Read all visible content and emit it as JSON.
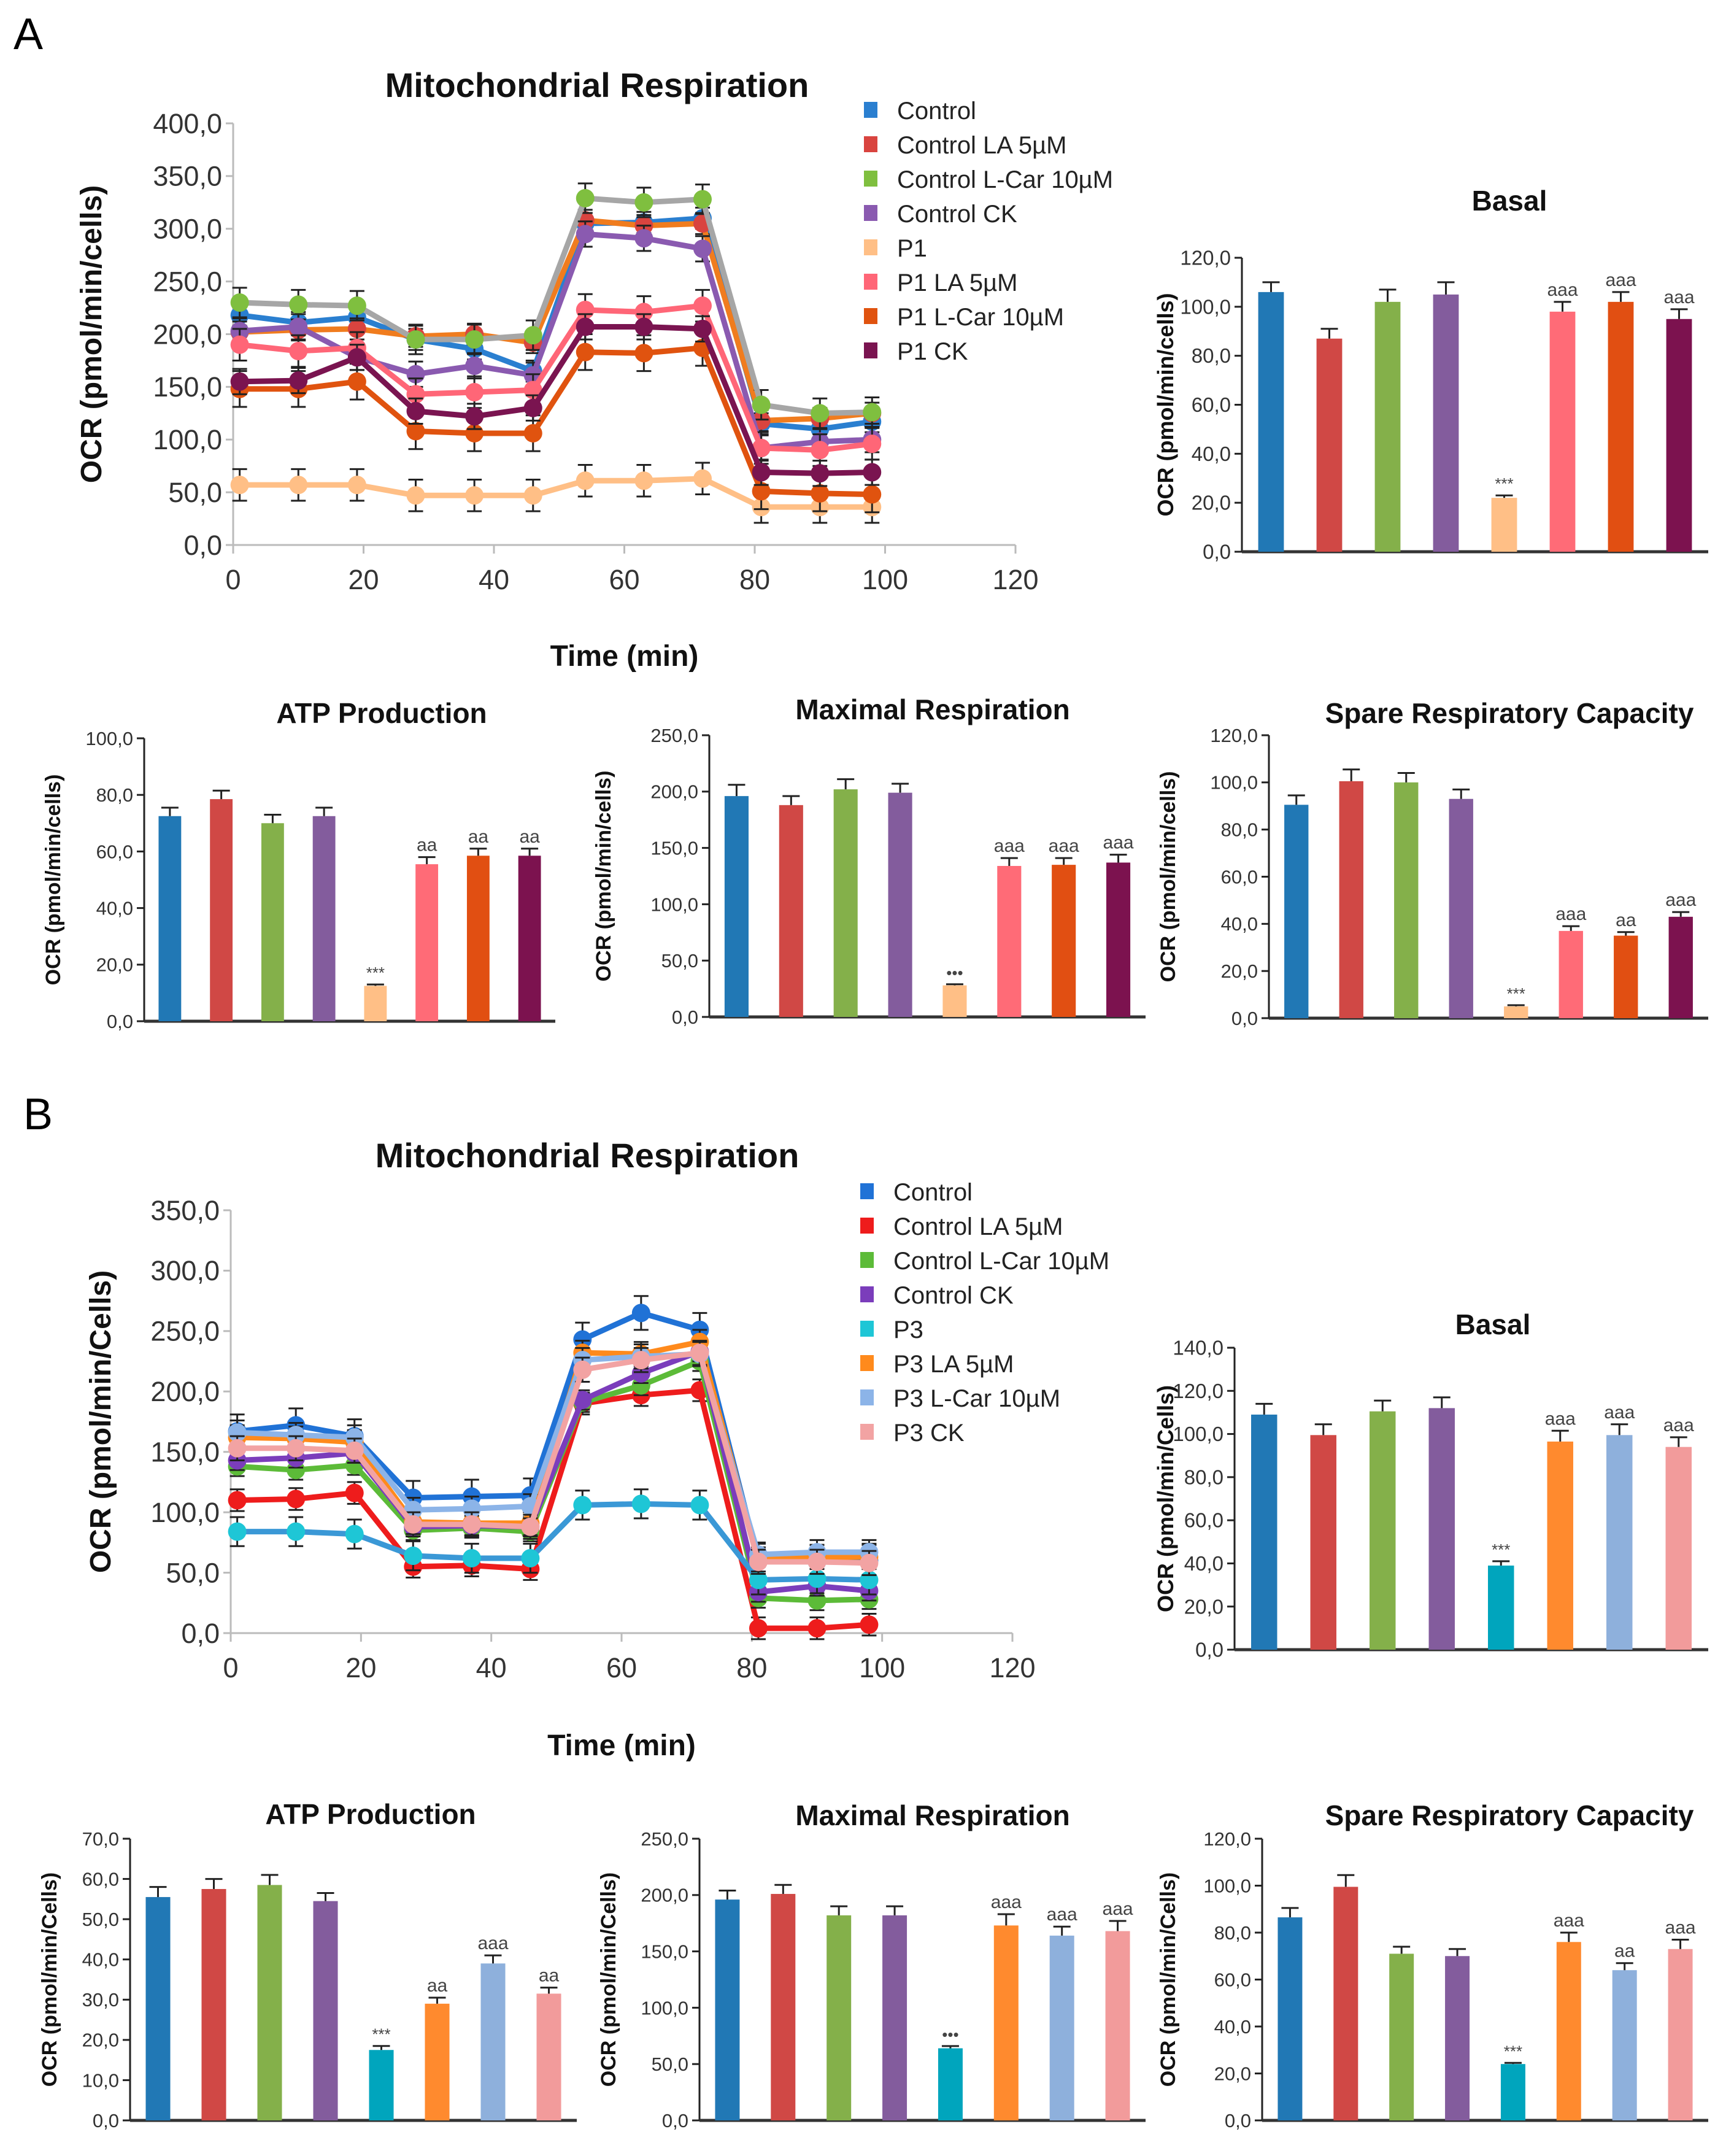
{
  "panels": [
    {
      "label": "A"
    },
    {
      "label": "B"
    }
  ],
  "chart_data": [
    {
      "id": "A-line",
      "type": "line",
      "title": "Mitochondrial Respiration",
      "xlabel": "Time (min)",
      "ylabel": "OCR (pmol/min/cells)",
      "xlim": [
        0,
        120
      ],
      "xticks": [
        "0",
        "20",
        "40",
        "60",
        "80",
        "100",
        "120"
      ],
      "ylim": [
        0,
        400
      ],
      "yticks": [
        "0,0",
        "50,0",
        "100,0",
        "150,0",
        "200,0",
        "250,0",
        "300,0",
        "350,0",
        "400,0"
      ],
      "legend": "top-right",
      "x": [
        1,
        10,
        19,
        28,
        37,
        46,
        54,
        63,
        72,
        81,
        90,
        98
      ],
      "series": [
        {
          "name": "Control",
          "color": "#2a7fd0",
          "line_color": "#2a7fd0",
          "error": 10,
          "values": [
            218,
            211,
            216,
            195,
            186,
            165,
            305,
            306,
            310,
            115,
            110,
            117
          ]
        },
        {
          "name": "Control LA 5µM",
          "color": "#d9443f",
          "line_color": "#f07c1e",
          "error": 10,
          "values": [
            202,
            204,
            205,
            198,
            200,
            192,
            308,
            303,
            305,
            118,
            120,
            125
          ]
        },
        {
          "name": "Control L-Car 10µM",
          "color": "#7fbf3f",
          "line_color": "#a6a6a6",
          "error": 14,
          "values": [
            230,
            228,
            227,
            195,
            195,
            199,
            329,
            325,
            328,
            133,
            125,
            126
          ]
        },
        {
          "name": "Control CK",
          "color": "#8a5ab0",
          "line_color": "#8a5ab0",
          "error": 12,
          "values": [
            203,
            207,
            178,
            162,
            170,
            161,
            295,
            291,
            281,
            92,
            98,
            100
          ]
        },
        {
          "name": "P1",
          "color": "#ffbf86",
          "line_color": "#ffbf86",
          "error": 15,
          "values": [
            57,
            57,
            57,
            47,
            47,
            47,
            61,
            61,
            63,
            36,
            36,
            36
          ]
        },
        {
          "name": "P1 LA 5µM",
          "color": "#ff6677",
          "line_color": "#ff6677",
          "error": 15,
          "values": [
            190,
            184,
            187,
            143,
            145,
            147,
            223,
            221,
            227,
            92,
            90,
            96
          ]
        },
        {
          "name": "P1  L-Car 10µM",
          "color": "#e0530f",
          "line_color": "#e0530f",
          "error": 17,
          "values": [
            148,
            148,
            155,
            108,
            106,
            106,
            183,
            182,
            187,
            51,
            49,
            48
          ]
        },
        {
          "name": "P1 CK",
          "color": "#7a1450",
          "line_color": "#7a1450",
          "error": 12,
          "values": [
            155,
            156,
            178,
            127,
            122,
            130,
            207,
            207,
            205,
            69,
            68,
            69
          ]
        }
      ]
    },
    {
      "id": "A-basal",
      "type": "bar",
      "title": "Basal",
      "ylabel": "OCR (pmol/min/cells)",
      "ylim": [
        0,
        120
      ],
      "yticks": [
        "0,0",
        "20,0",
        "40,0",
        "60,0",
        "80,0",
        "100,0",
        "120,0"
      ],
      "values": [
        106,
        87,
        102,
        105,
        22,
        98,
        102,
        95
      ],
      "errors": [
        4,
        4,
        5,
        5,
        1,
        4,
        4,
        4
      ],
      "annotations": [
        "",
        "",
        "",
        "",
        "***",
        "aaa",
        "aaa",
        "aaa"
      ],
      "colors": [
        "#2178b5",
        "#d04845",
        "#84b04a",
        "#835c9d",
        "#ffbf86",
        "#ff6b77",
        "#e14f12",
        "#7c124f"
      ]
    },
    {
      "id": "A-atp",
      "type": "bar",
      "title": "ATP Production",
      "ylabel": "OCR (pmol/min/cells)",
      "ylim": [
        0,
        100
      ],
      "yticks": [
        "0,0",
        "20,0",
        "40,0",
        "60,0",
        "80,0",
        "100,0"
      ],
      "values": [
        72.5,
        78.5,
        70,
        72.5,
        12.5,
        55.5,
        58.5,
        58.5
      ],
      "errors": [
        3,
        3,
        3,
        3,
        0.5,
        2.5,
        2.5,
        2.5
      ],
      "annotations": [
        "",
        "",
        "",
        "",
        "***",
        "aa",
        "aa",
        "aa"
      ],
      "colors": [
        "#2178b5",
        "#d04845",
        "#84b04a",
        "#835c9d",
        "#ffbf86",
        "#ff6b77",
        "#e14f12",
        "#7c124f"
      ]
    },
    {
      "id": "A-max",
      "type": "bar",
      "title": "Maximal Respiration",
      "ylabel": "OCR (pmol/min/cells)",
      "ylim": [
        0,
        250
      ],
      "yticks": [
        "0,0",
        "50,0",
        "100,0",
        "150,0",
        "200,0",
        "250,0"
      ],
      "values": [
        196,
        188,
        202,
        199,
        28,
        134,
        135,
        137
      ],
      "errors": [
        10,
        8,
        9,
        8,
        1,
        7,
        6,
        7
      ],
      "annotations": [
        "",
        "",
        "",
        "",
        "•••",
        "aaa",
        "aaa",
        "aaa"
      ],
      "colors": [
        "#2178b5",
        "#d04845",
        "#84b04a",
        "#835c9d",
        "#ffbf86",
        "#ff6b77",
        "#e14f12",
        "#7c124f"
      ]
    },
    {
      "id": "A-spare",
      "type": "bar",
      "title": "Spare Respiratory Capacity",
      "ylabel": "OCR (pmol/min/cells)",
      "ylim": [
        0,
        120
      ],
      "yticks": [
        "0,0",
        "20,0",
        "40,0",
        "60,0",
        "80,0",
        "100,0",
        "120,0"
      ],
      "values": [
        90.5,
        100.5,
        100,
        93,
        5,
        37,
        35,
        43
      ],
      "errors": [
        4,
        5,
        4,
        4,
        0.5,
        2,
        1.5,
        2
      ],
      "annotations": [
        "",
        "",
        "",
        "",
        "***",
        "aaa",
        "aa",
        "aaa"
      ],
      "colors": [
        "#2178b5",
        "#d04845",
        "#84b04a",
        "#835c9d",
        "#ffbf86",
        "#ff6b77",
        "#e14f12",
        "#7c124f"
      ]
    },
    {
      "id": "B-line",
      "type": "line",
      "title": "Mitochondrial Respiration",
      "xlabel": "Time (min)",
      "ylabel": "OCR (pmol/min/Cells)",
      "xlim": [
        0,
        120
      ],
      "xticks": [
        "0",
        "20",
        "40",
        "60",
        "80",
        "100",
        "120"
      ],
      "ylim": [
        0,
        350
      ],
      "yticks": [
        "0,0",
        "50,0",
        "100,0",
        "150,0",
        "200,0",
        "250,0",
        "300,0",
        "350,0"
      ],
      "legend": "top-right",
      "x": [
        1,
        10,
        19,
        28,
        37,
        46,
        54,
        63,
        72,
        81,
        90,
        98
      ],
      "series": [
        {
          "name": "Control",
          "color": "#2072d6",
          "line_color": "#2072d6",
          "error": 14,
          "values": [
            167,
            172,
            163,
            112,
            113,
            114,
            243,
            265,
            251,
            60,
            59,
            60
          ]
        },
        {
          "name": "Control LA 5µM",
          "color": "#ee1c1c",
          "line_color": "#ee1c1c",
          "error": 9,
          "values": [
            110,
            111,
            116,
            55,
            56,
            53,
            190,
            197,
            201,
            4,
            4,
            7
          ]
        },
        {
          "name": "Control L-Car 10µM",
          "color": "#5cbb38",
          "line_color": "#5cbb38",
          "error": 8,
          "values": [
            138,
            135,
            139,
            85,
            87,
            84,
            191,
            205,
            225,
            29,
            27,
            28
          ]
        },
        {
          "name": "Control CK",
          "color": "#7b3dbb",
          "line_color": "#7b3dbb",
          "error": 8,
          "values": [
            143,
            145,
            149,
            88,
            89,
            88,
            193,
            215,
            233,
            34,
            39,
            35
          ]
        },
        {
          "name": "P3",
          "color": "#1ec6d6",
          "line_color": "#3a98d6",
          "error": 12,
          "values": [
            84,
            84,
            82,
            64,
            62,
            62,
            106,
            107,
            106,
            44,
            45,
            44
          ]
        },
        {
          "name": "P3 LA 5µM",
          "color": "#ff8a1c",
          "line_color": "#ff8a1c",
          "error": 10,
          "values": [
            162,
            161,
            158,
            92,
            91,
            91,
            232,
            231,
            241,
            61,
            63,
            63
          ]
        },
        {
          "name": "P3 L-Car 10µM",
          "color": "#8cb4e8",
          "line_color": "#8cb4e8",
          "error": 10,
          "values": [
            166,
            164,
            162,
            102,
            103,
            105,
            226,
            229,
            231,
            65,
            67,
            67
          ]
        },
        {
          "name": "P3 CK",
          "color": "#f2a3a3",
          "line_color": "#f2a3a3",
          "error": 10,
          "values": [
            153,
            153,
            151,
            90,
            90,
            88,
            218,
            226,
            232,
            59,
            59,
            58
          ]
        }
      ]
    },
    {
      "id": "B-basal",
      "type": "bar",
      "title": "Basal",
      "ylabel": "OCR (pmol/min/Cells)",
      "ylim": [
        0,
        140
      ],
      "yticks": [
        "0,0",
        "20,0",
        "40,0",
        "60,0",
        "80,0",
        "100,0",
        "120,0",
        "140,0"
      ],
      "values": [
        109,
        99.5,
        110.5,
        112,
        39,
        96.5,
        99.5,
        94
      ],
      "errors": [
        5,
        5,
        5,
        5,
        2,
        5,
        5,
        4.5
      ],
      "annotations": [
        "",
        "",
        "",
        "",
        "***",
        "aaa",
        "aaa",
        "aaa"
      ],
      "colors": [
        "#2178b5",
        "#d04845",
        "#84b04a",
        "#835c9d",
        "#00a5bd",
        "#ff8a2e",
        "#8eb0dc",
        "#f29b9b"
      ]
    },
    {
      "id": "B-atp",
      "type": "bar",
      "title": "ATP Production",
      "ylabel": "OCR (pmol/min/Cells)",
      "ylim": [
        0,
        70
      ],
      "yticks": [
        "0,0",
        "10,0",
        "20,0",
        "30,0",
        "40,0",
        "50,0",
        "60,0",
        "70,0"
      ],
      "values": [
        55.5,
        57.5,
        58.5,
        54.5,
        17.5,
        29,
        39,
        31.5
      ],
      "errors": [
        2.5,
        2.5,
        2.5,
        2,
        1,
        1.5,
        2,
        1.5
      ],
      "annotations": [
        "",
        "",
        "",
        "",
        "***",
        "aa",
        "aaa",
        "aa"
      ],
      "colors": [
        "#2178b5",
        "#d04845",
        "#84b04a",
        "#835c9d",
        "#00a5bd",
        "#ff8a2e",
        "#8eb0dc",
        "#f29b9b"
      ]
    },
    {
      "id": "B-max",
      "type": "bar",
      "title": "Maximal Respiration",
      "ylabel": "OCR (pmol/min/Cells)",
      "ylim": [
        0,
        250
      ],
      "yticks": [
        "0,0",
        "50,0",
        "100,0",
        "150,0",
        "200,0",
        "250,0"
      ],
      "values": [
        196,
        201,
        182,
        182,
        64,
        173,
        164,
        168
      ],
      "errors": [
        8,
        8,
        8,
        8,
        2,
        10,
        8,
        9
      ],
      "annotations": [
        "",
        "",
        "",
        "",
        "•••",
        "aaa",
        "aaa",
        "aaa"
      ],
      "colors": [
        "#2178b5",
        "#d04845",
        "#84b04a",
        "#835c9d",
        "#00a5bd",
        "#ff8a2e",
        "#8eb0dc",
        "#f29b9b"
      ]
    },
    {
      "id": "B-spare",
      "type": "bar",
      "title": "Spare Respiratory Capacity",
      "ylabel": "OCR (pmol/min/Cells)",
      "ylim": [
        0,
        120
      ],
      "yticks": [
        "0,0",
        "20,0",
        "40,0",
        "60,0",
        "80,0",
        "100,0",
        "120,0"
      ],
      "values": [
        86.5,
        99.5,
        71,
        70,
        24,
        76,
        64,
        73
      ],
      "errors": [
        4,
        5,
        3,
        3,
        0.5,
        4,
        3,
        4
      ],
      "annotations": [
        "",
        "",
        "",
        "",
        "***",
        "aaa",
        "aa",
        "aaa"
      ],
      "colors": [
        "#2178b5",
        "#d04845",
        "#84b04a",
        "#835c9d",
        "#00a5bd",
        "#ff8a2e",
        "#8eb0dc",
        "#f29b9b"
      ]
    }
  ]
}
